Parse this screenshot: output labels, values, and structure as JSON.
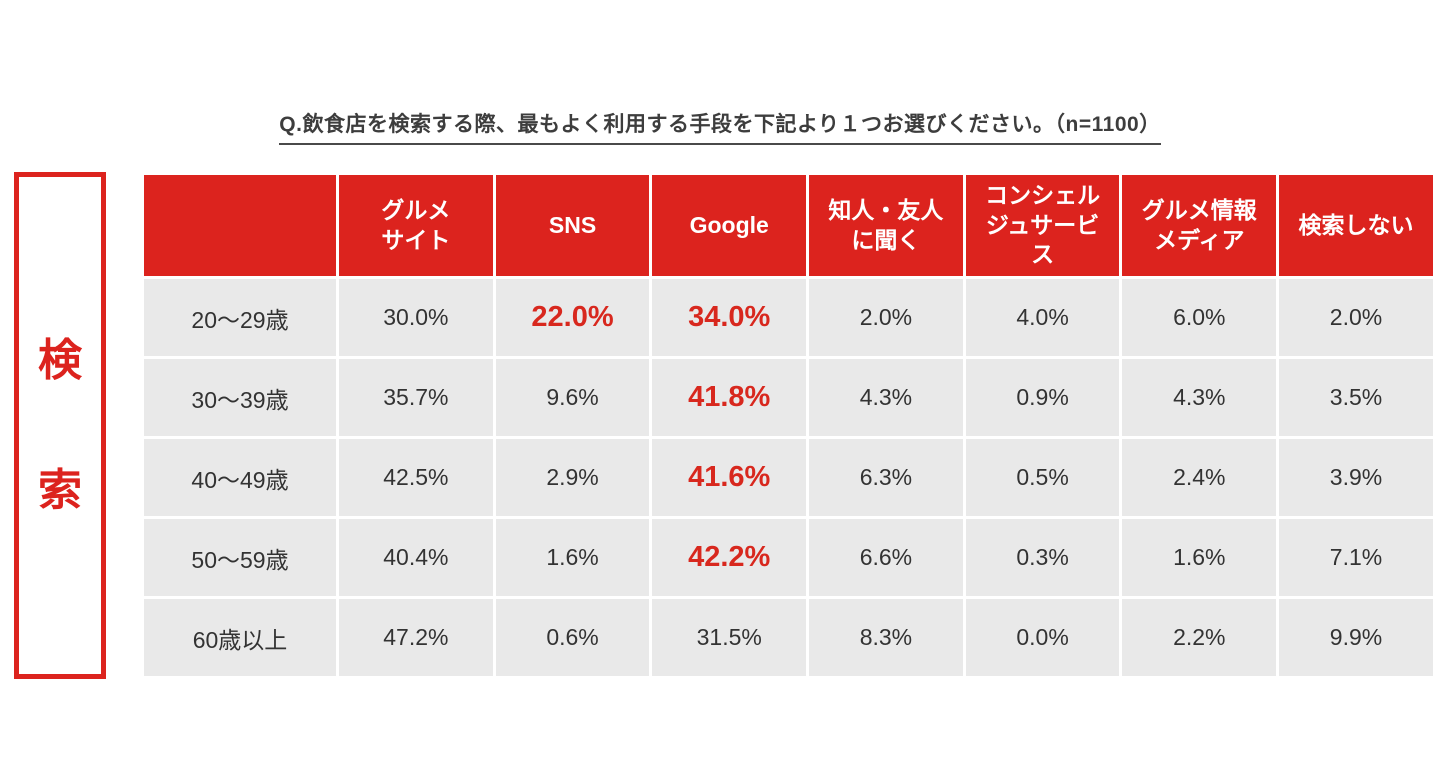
{
  "title": "Q.飲食店を検索する際、最もよく利用する手段を下記より１つお選びください。（n=1100）",
  "side_label": {
    "chars": [
      "検",
      "索"
    ]
  },
  "colors": {
    "accent_red": "#dc231e",
    "highlight_red": "#d8281e",
    "header_text": "#ffffff",
    "row_bg": "#e9e9e9",
    "cell_text": "#333333",
    "title_text": "#3d3d3d"
  },
  "table": {
    "header": [
      "",
      "グルメ\nサイト",
      "SNS",
      "Google",
      "知人・友人\nに聞く",
      "コンシェル\nジュサービ\nス",
      "グルメ情報\nメディア",
      "検索しない"
    ],
    "rows": [
      {
        "label": "20〜29歳",
        "values": [
          "30.0%",
          "22.0%",
          "34.0%",
          "2.0%",
          "4.0%",
          "6.0%",
          "2.0%"
        ],
        "highlight": [
          1,
          2
        ]
      },
      {
        "label": "30〜39歳",
        "values": [
          "35.7%",
          "9.6%",
          "41.8%",
          "4.3%",
          "0.9%",
          "4.3%",
          "3.5%"
        ],
        "highlight": [
          2
        ]
      },
      {
        "label": "40〜49歳",
        "values": [
          "42.5%",
          "2.9%",
          "41.6%",
          "6.3%",
          "0.5%",
          "2.4%",
          "3.9%"
        ],
        "highlight": [
          2
        ]
      },
      {
        "label": "50〜59歳",
        "values": [
          "40.4%",
          "1.6%",
          "42.2%",
          "6.6%",
          "0.3%",
          "1.6%",
          "7.1%"
        ],
        "highlight": [
          2
        ]
      },
      {
        "label": "60歳以上",
        "values": [
          "47.2%",
          "0.6%",
          "31.5%",
          "8.3%",
          "0.0%",
          "2.2%",
          "9.9%"
        ],
        "highlight": []
      }
    ]
  },
  "chart_data": {
    "type": "table",
    "title": "Q.飲食店を検索する際、最もよく利用する手段を下記より１つお選びください。",
    "sample_size": "n=1100",
    "unit": "percent",
    "columns": [
      "グルメサイト",
      "SNS",
      "Google",
      "知人・友人に聞く",
      "コンシェルジュサービス",
      "グルメ情報メディア",
      "検索しない"
    ],
    "categories": [
      "20〜29歳",
      "30〜39歳",
      "40〜49歳",
      "50〜59歳",
      "60歳以上"
    ],
    "series": [
      {
        "name": "20〜29歳",
        "values": [
          30.0,
          22.0,
          34.0,
          2.0,
          4.0,
          6.0,
          2.0
        ]
      },
      {
        "name": "30〜39歳",
        "values": [
          35.7,
          9.6,
          41.8,
          4.3,
          0.9,
          4.3,
          3.5
        ]
      },
      {
        "name": "40〜49歳",
        "values": [
          42.5,
          2.9,
          41.6,
          6.3,
          0.5,
          2.4,
          3.9
        ]
      },
      {
        "name": "50〜59歳",
        "values": [
          40.4,
          1.6,
          42.2,
          6.6,
          0.3,
          1.6,
          7.1
        ]
      },
      {
        "name": "60歳以上",
        "values": [
          47.2,
          0.6,
          31.5,
          8.3,
          0.0,
          2.2,
          9.9
        ]
      }
    ],
    "highlighted": [
      {
        "row": "20〜29歳",
        "column": "SNS",
        "value": 22.0
      },
      {
        "row": "20〜29歳",
        "column": "Google",
        "value": 34.0
      },
      {
        "row": "30〜39歳",
        "column": "Google",
        "value": 41.8
      },
      {
        "row": "40〜49歳",
        "column": "Google",
        "value": 41.6
      },
      {
        "row": "50〜59歳",
        "column": "Google",
        "value": 42.2
      }
    ]
  }
}
